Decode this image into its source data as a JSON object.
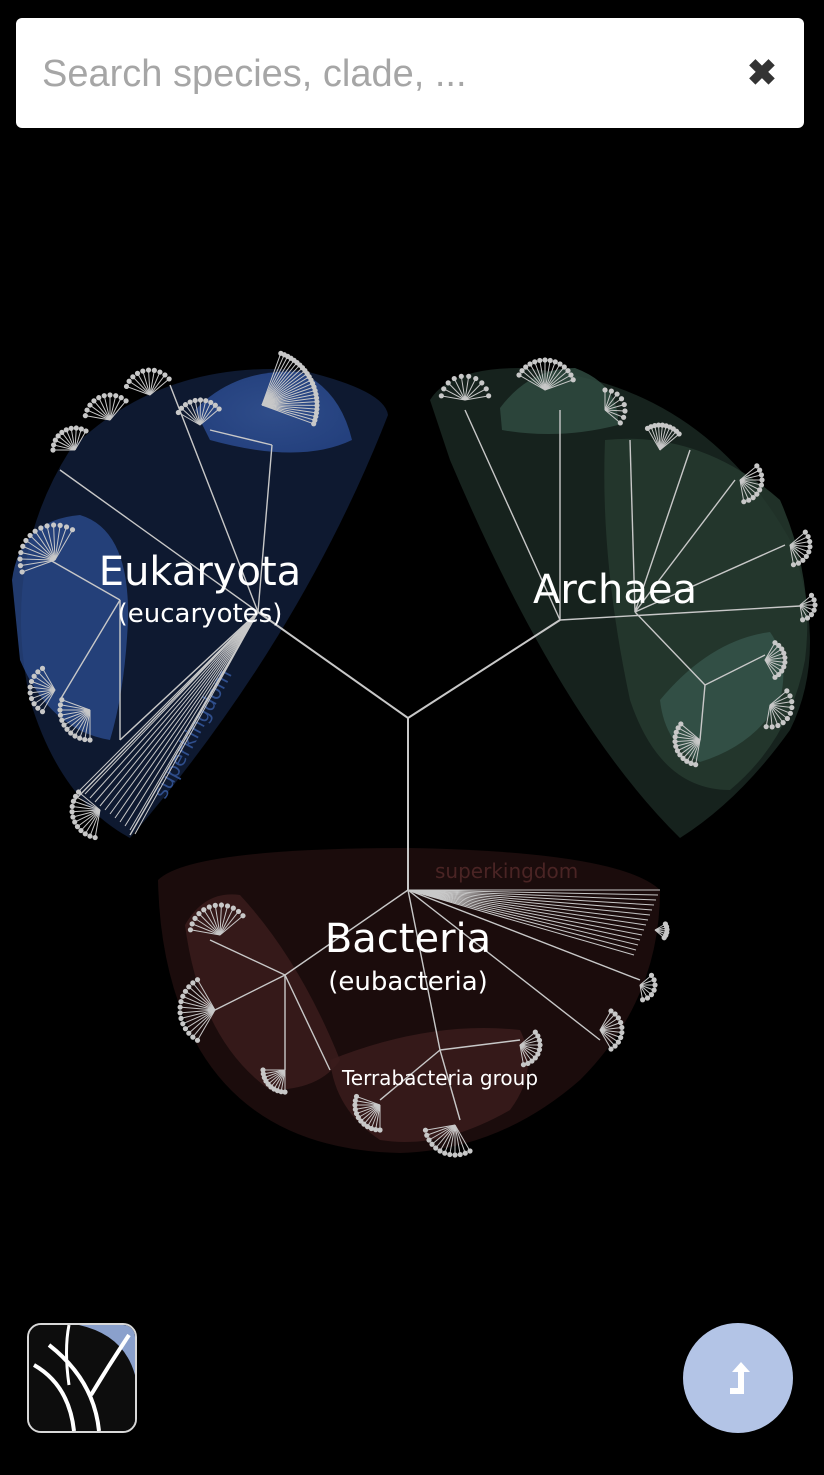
{
  "search": {
    "placeholder": "Search species, clade, ...",
    "clear_icon": "✖"
  },
  "tree": {
    "root_label": "",
    "clades": {
      "eukaryota": {
        "name": "Eukaryota",
        "common": "(eucaryotes)",
        "rank": "superkingdom",
        "color": "#1c3a78"
      },
      "archaea": {
        "name": "Archaea",
        "rank": "",
        "color": "#1f3b33"
      },
      "bacteria": {
        "name": "Bacteria",
        "common": "(eubacteria)",
        "rank": "superkingdom",
        "color": "#3a1717"
      },
      "terrabacteria": {
        "name": "Terrabacteria group"
      }
    }
  },
  "buttons": {
    "logo_icon": "tree-logo-icon",
    "reset_icon": "reset-view-icon"
  },
  "colors": {
    "accent": "#b3c4e6",
    "branch": "#c8c8c8"
  }
}
